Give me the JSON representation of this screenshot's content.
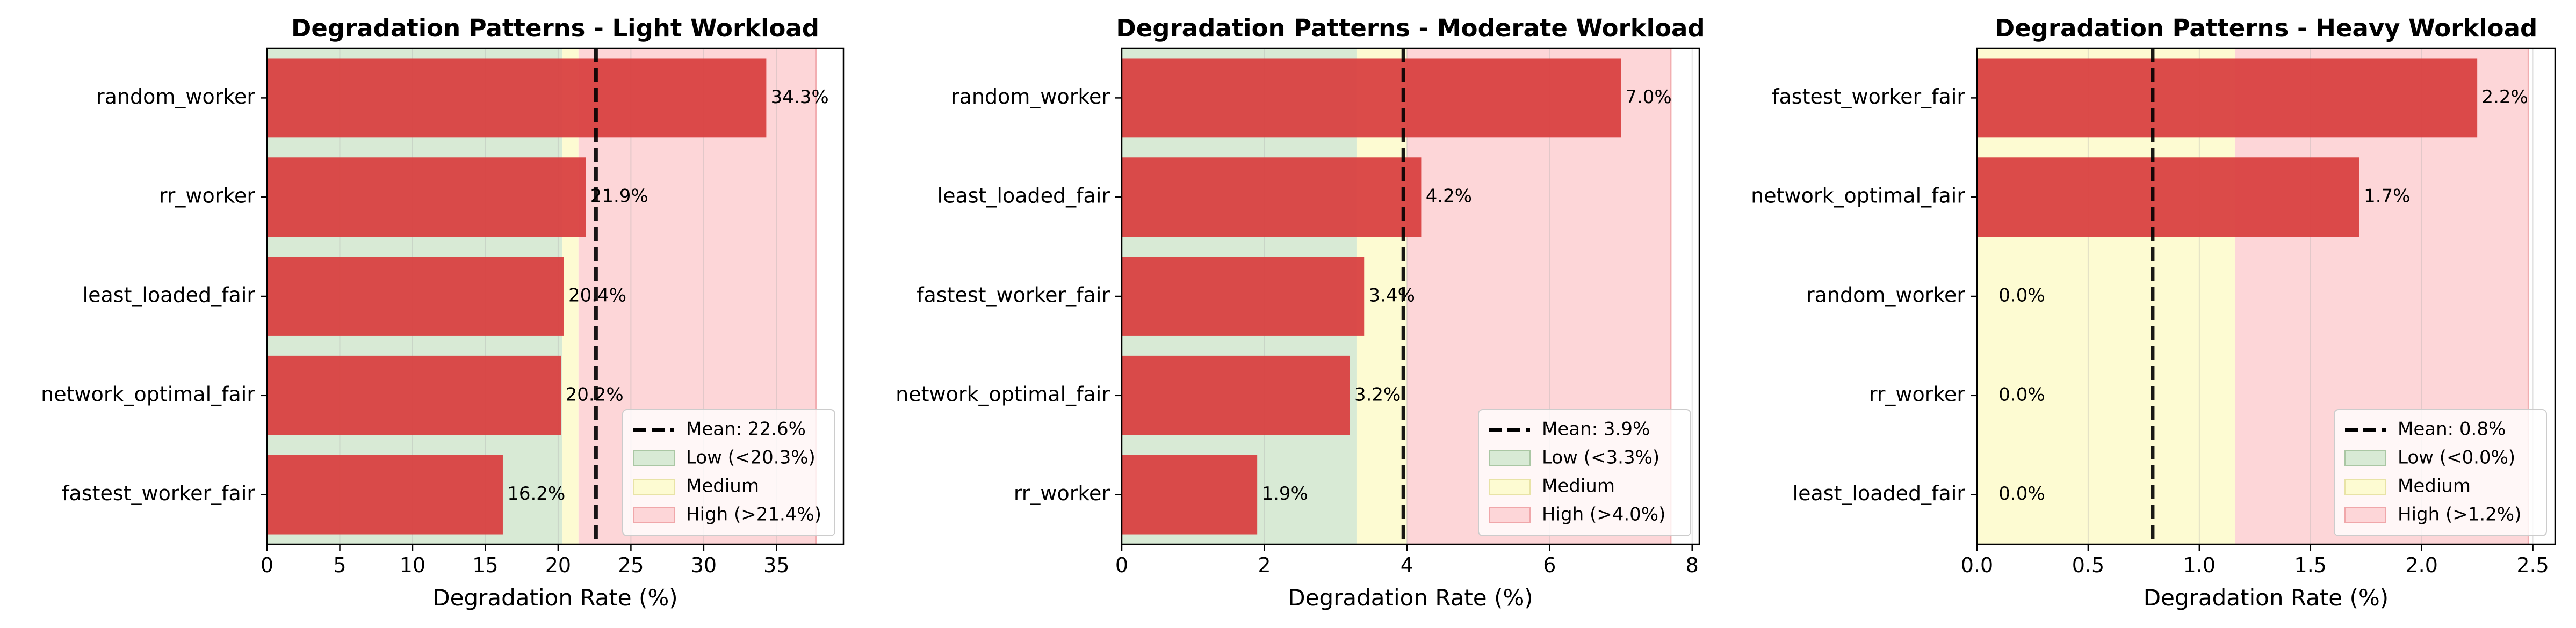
{
  "chart_data": [
    {
      "type": "bar",
      "orientation": "horizontal",
      "title": "Degradation Patterns - Light Workload",
      "xlabel": "Degradation Rate (%)",
      "ylabel": "",
      "xlim": [
        0,
        39.6
      ],
      "xticks": [
        0,
        5,
        10,
        15,
        20,
        25,
        30,
        35
      ],
      "grid": "x",
      "categories": [
        "random_worker",
        "rr_worker",
        "least_loaded_fair",
        "network_optimal_fair",
        "fastest_worker_fair"
      ],
      "values": [
        34.3,
        21.9,
        20.4,
        20.2,
        16.2
      ],
      "value_labels": [
        "34.3%",
        "21.9%",
        "20.4%",
        "20.2%",
        "16.2%"
      ],
      "mean": 22.6,
      "bands": {
        "low_max": 20.3,
        "high_min": 21.4,
        "band_end": 37.7
      },
      "legend": {
        "position": "lower-right",
        "entries": [
          "Mean: 22.6%",
          "Low (<20.3%)",
          "Medium",
          "High (>21.4%)"
        ]
      },
      "colors": {
        "bar": "#d94141",
        "low": "#d8ead5",
        "medium": "#fdfbd2",
        "high": "#fdd6d8",
        "mean_line": "#000000"
      }
    },
    {
      "type": "bar",
      "orientation": "horizontal",
      "title": "Degradation Patterns - Moderate Workload",
      "xlabel": "Degradation Rate (%)",
      "ylabel": "",
      "xlim": [
        0,
        8.1
      ],
      "xticks": [
        0,
        2,
        4,
        6,
        8
      ],
      "grid": "x",
      "categories": [
        "random_worker",
        "least_loaded_fair",
        "fastest_worker_fair",
        "network_optimal_fair",
        "rr_worker"
      ],
      "values": [
        7.0,
        4.2,
        3.4,
        3.2,
        1.9
      ],
      "value_labels": [
        "7.0%",
        "4.2%",
        "3.4%",
        "3.2%",
        "1.9%"
      ],
      "mean": 3.95,
      "bands": {
        "low_max": 3.3,
        "high_min": 4.0,
        "band_end": 7.7
      },
      "legend": {
        "position": "lower-right",
        "entries": [
          "Mean: 3.9%",
          "Low (<3.3%)",
          "Medium",
          "High (>4.0%)"
        ]
      },
      "colors": {
        "bar": "#d94141",
        "low": "#d8ead5",
        "medium": "#fdfbd2",
        "high": "#fdd6d8",
        "mean_line": "#000000"
      }
    },
    {
      "type": "bar",
      "orientation": "horizontal",
      "title": "Degradation Patterns - Heavy Workload",
      "xlabel": "Degradation Rate (%)",
      "ylabel": "",
      "xlim": [
        0,
        2.6
      ],
      "xticks": [
        0,
        0.5,
        1.0,
        1.5,
        2.0,
        2.5
      ],
      "xtick_labels": [
        "0.0",
        "0.5",
        "1.0",
        "1.5",
        "2.0",
        "2.5"
      ],
      "grid": "x",
      "categories": [
        "fastest_worker_fair",
        "network_optimal_fair",
        "random_worker",
        "rr_worker",
        "least_loaded_fair"
      ],
      "values": [
        2.25,
        1.72,
        0.0,
        0.0,
        0.0
      ],
      "value_labels": [
        "2.2%",
        "1.7%",
        "0.0%",
        "0.0%",
        "0.0%"
      ],
      "mean": 0.79,
      "bands": {
        "low_max": 0.0,
        "high_min": 1.16,
        "band_end": 2.48
      },
      "legend": {
        "position": "lower-right",
        "entries": [
          "Mean: 0.8%",
          "Low (<0.0%)",
          "Medium",
          "High (>1.2%)"
        ]
      },
      "colors": {
        "bar": "#d94141",
        "low": "#d8ead5",
        "medium": "#fdfbd2",
        "high": "#fdd6d8",
        "mean_line": "#000000"
      }
    }
  ]
}
